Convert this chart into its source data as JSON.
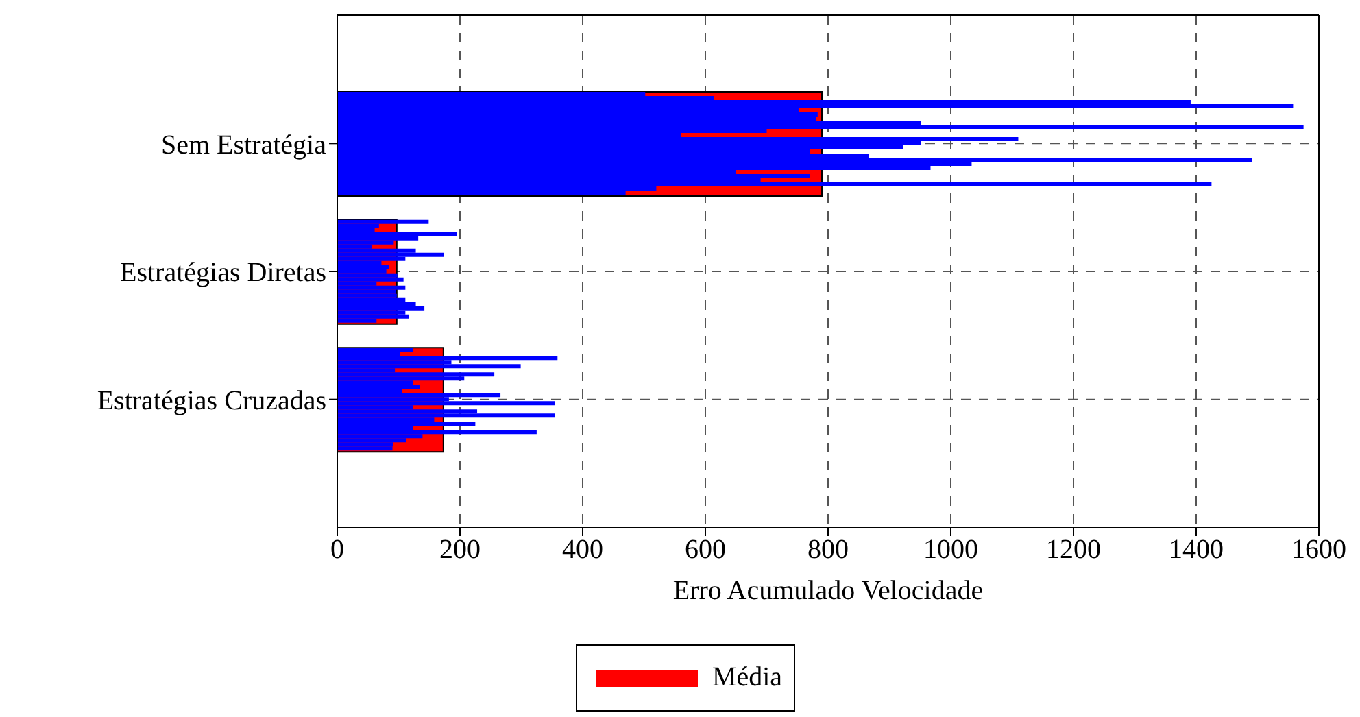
{
  "chart_data": {
    "type": "bar",
    "orientation": "horizontal",
    "xlabel": "Erro Acumulado Velocidade",
    "categories": [
      "Sem Estratégia",
      "Estratégias Diretas",
      "Estratégias Cruzadas"
    ],
    "xlim": [
      0,
      1600
    ],
    "xticks": [
      0,
      200,
      400,
      600,
      800,
      1000,
      1200,
      1400,
      1600
    ],
    "grid": true,
    "legend": "bottom",
    "series": [
      {
        "name": "Média",
        "color": "#ff0000",
        "values": [
          790,
          97,
          173
        ]
      },
      {
        "color": "#0000ff",
        "values": [
          502,
          149,
          123
        ]
      },
      {
        "color": "#0000ff",
        "values": [
          614,
          68,
          102
        ]
      },
      {
        "color": "#0000ff",
        "values": [
          1391,
          61,
          359
        ]
      },
      {
        "color": "#0000ff",
        "values": [
          1558,
          195,
          186
        ]
      },
      {
        "color": "#0000ff",
        "values": [
          752,
          132,
          299
        ]
      },
      {
        "color": "#0000ff",
        "values": [
          783,
          92,
          94
        ]
      },
      {
        "color": "#0000ff",
        "values": [
          781,
          56,
          256
        ]
      },
      {
        "color": "#0000ff",
        "values": [
          951,
          128,
          207
        ]
      },
      {
        "color": "#0000ff",
        "values": [
          1575,
          174,
          124
        ]
      },
      {
        "color": "#0000ff",
        "values": [
          700,
          111,
          135
        ]
      },
      {
        "color": "#0000ff",
        "values": [
          560,
          72,
          106
        ]
      },
      {
        "color": "#0000ff",
        "values": [
          1110,
          84,
          266
        ]
      },
      {
        "color": "#0000ff",
        "values": [
          951,
          80,
          182
        ]
      },
      {
        "color": "#0000ff",
        "values": [
          922,
          98,
          355
        ]
      },
      {
        "color": "#0000ff",
        "values": [
          770,
          108,
          124
        ]
      },
      {
        "color": "#0000ff",
        "values": [
          866,
          64,
          228
        ]
      },
      {
        "color": "#0000ff",
        "values": [
          1491,
          111,
          355
        ]
      },
      {
        "color": "#0000ff",
        "values": [
          1034,
          95,
          158
        ]
      },
      {
        "color": "#0000ff",
        "values": [
          967,
          97,
          225
        ]
      },
      {
        "color": "#0000ff",
        "values": [
          650,
          111,
          124
        ]
      },
      {
        "color": "#0000ff",
        "values": [
          770,
          128,
          325
        ]
      },
      {
        "color": "#0000ff",
        "values": [
          690,
          142,
          139
        ]
      },
      {
        "color": "#0000ff",
        "values": [
          1425,
          111,
          112
        ]
      },
      {
        "color": "#0000ff",
        "values": [
          520,
          117,
          91
        ]
      },
      {
        "color": "#0000ff",
        "values": [
          470,
          64,
          90
        ]
      }
    ]
  }
}
